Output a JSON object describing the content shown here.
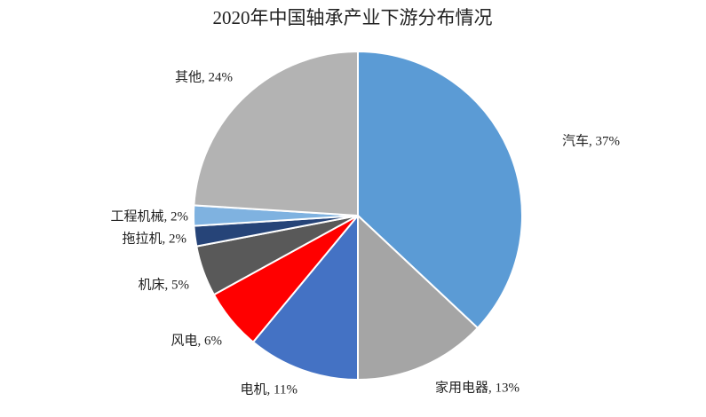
{
  "chart_data": {
    "type": "pie",
    "title": "2020年中国轴承产业下游分布情况",
    "values": [
      37,
      13,
      11,
      6,
      5,
      2,
      2,
      24
    ],
    "value_labels": [
      "汽车, 37%",
      "家用电器, 13%",
      "电机, 11%",
      "风电, 6%",
      "机床, 5%",
      "拖拉机, 2%",
      "工程机械, 2%",
      "其他, 24%"
    ],
    "colors": [
      "#5b9bd5",
      "#a5a5a5",
      "#4472c4",
      "#ff0000",
      "#595959",
      "#264478",
      "#7fb2e0",
      "#b3b3b3"
    ]
  }
}
